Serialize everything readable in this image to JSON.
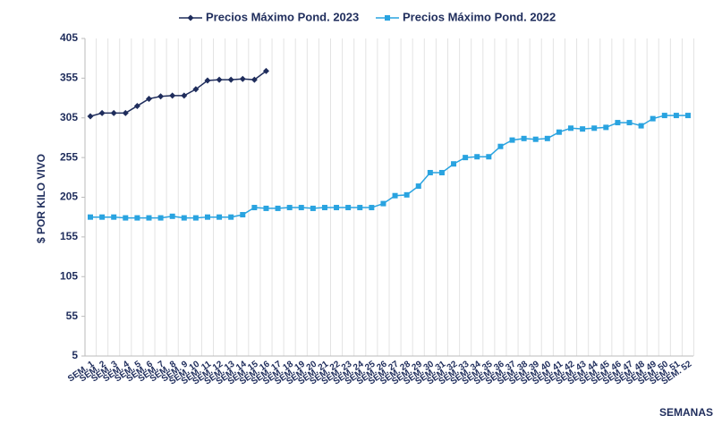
{
  "chart_data": {
    "type": "line",
    "y_label": "$ POR KILO VIVO",
    "x_label": "SEMANAS",
    "categories": [
      "SEM. 1",
      "SEM. 2",
      "SEM. 3",
      "SEM. 4",
      "SEM. 5",
      "SEM. 6",
      "SEM. 7",
      "SEM. 8",
      "SEM. 9",
      "SEM. 10",
      "SEM. 11",
      "SEM. 12",
      "SEM. 13",
      "SEM. 14",
      "SEM. 15",
      "SEM. 16",
      "SEM. 17",
      "SEM. 18",
      "SEM. 19",
      "SEM. 20",
      "SEM. 21",
      "SEM. 22",
      "SEM. 23",
      "SEM. 24",
      "SEM. 25",
      "SEM. 26",
      "SEM. 27",
      "SEM. 28",
      "SEM. 29",
      "SEM. 30",
      "SEM. 31",
      "SEM. 32",
      "SEM. 33",
      "SEM. 34",
      "SEM. 35",
      "SEM. 36",
      "SEM. 37",
      "SEM. 38",
      "SEM. 39",
      "SEM. 40",
      "SEM. 41",
      "SEM. 42",
      "SEM. 43",
      "SEM. 44",
      "SEM. 45",
      "SEM. 46",
      "SEM. 47",
      "SEM. 48",
      "SEM. 49",
      "SEM. 50",
      "SEM. 51",
      "SEM. 52"
    ],
    "series": [
      {
        "name": "Precios Máximo Pond. 2023",
        "color": "#1f2d5c",
        "marker": "diamond",
        "values": [
          307,
          311,
          311,
          311,
          320,
          329,
          332,
          333,
          333,
          341,
          352,
          353,
          353,
          354,
          353,
          364,
          null,
          null,
          null,
          null,
          null,
          null,
          null,
          null,
          null,
          null,
          null,
          null,
          null,
          null,
          null,
          null,
          null,
          null,
          null,
          null,
          null,
          null,
          null,
          null,
          null,
          null,
          null,
          null,
          null,
          null,
          null,
          null,
          null,
          null,
          null,
          null
        ]
      },
      {
        "name": "Precios Máximo Pond. 2022",
        "color": "#29a3e0",
        "marker": "square",
        "values": [
          180,
          180,
          180,
          179,
          179,
          179,
          179,
          181,
          179,
          179,
          180,
          180,
          180,
          183,
          192,
          191,
          191,
          192,
          192,
          191,
          192,
          192,
          192,
          192,
          192,
          197,
          207,
          208,
          219,
          236,
          236,
          247,
          255,
          256,
          256,
          269,
          277,
          279,
          278,
          279,
          287,
          292,
          291,
          292,
          293,
          299,
          299,
          295,
          304,
          308,
          308,
          308
        ]
      }
    ],
    "ylim": [
      5,
      405
    ],
    "yticks": [
      5,
      55,
      105,
      155,
      205,
      255,
      305,
      355,
      405
    ],
    "grid": "vertical",
    "legend": "top"
  }
}
